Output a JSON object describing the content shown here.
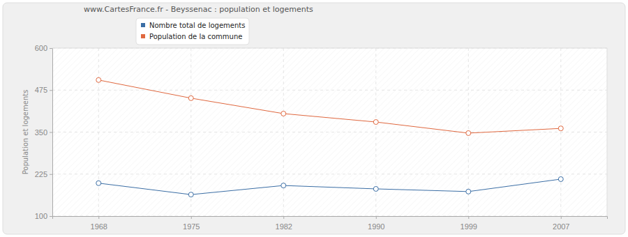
{
  "chart_data": {
    "type": "line",
    "title": "www.CartesFrance.fr - Beyssenac : population et logements",
    "ylabel": "Population et logements",
    "categories": [
      "1968",
      "1975",
      "1982",
      "1990",
      "1999",
      "2007"
    ],
    "series": [
      {
        "name": "Nombre total de logements",
        "color": "#3b6ea5",
        "marker": "circle",
        "values": [
          198,
          164,
          191,
          181,
          173,
          210
        ]
      },
      {
        "name": "Population de la commune",
        "color": "#e0683f",
        "marker": "circle",
        "values": [
          505,
          451,
          405,
          380,
          347,
          361
        ]
      }
    ],
    "ylim": [
      100,
      600
    ],
    "yticks": [
      100,
      225,
      350,
      475,
      600
    ],
    "grid": true,
    "legend": "top"
  }
}
